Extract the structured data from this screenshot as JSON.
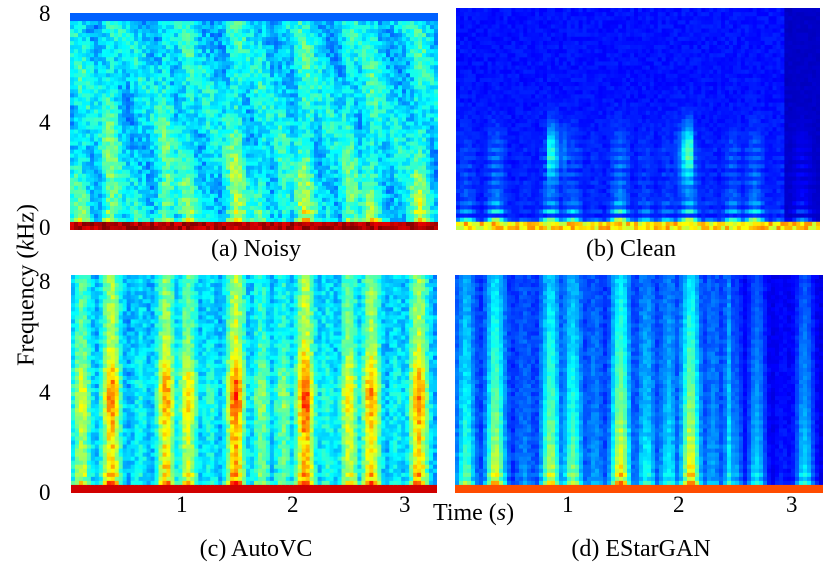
{
  "chart_data": {
    "type": "heatmap",
    "ylabel_pre": "Frequency (",
    "ylabel_unit": "k",
    "ylabel_post": "Hz)",
    "xlabel_pre": "Time (",
    "xlabel_unit": "s",
    "xlabel_post": ")",
    "ylim": [
      0,
      8
    ],
    "xlim": [
      0,
      3.3
    ],
    "y_ticks": [
      "8",
      "4",
      "0"
    ],
    "x_ticks": [
      "1",
      "2",
      "3"
    ],
    "colormap": "jet",
    "panels": [
      {
        "id": "a",
        "caption": "(a) Noisy",
        "noise": 0.38
      },
      {
        "id": "b",
        "caption": "(b) Clean",
        "noise": 0.02
      },
      {
        "id": "c",
        "caption": "(c) AutoVC",
        "noise": 0.3
      },
      {
        "id": "d",
        "caption": "(d) EStarGAN",
        "noise": 0.06
      }
    ]
  }
}
